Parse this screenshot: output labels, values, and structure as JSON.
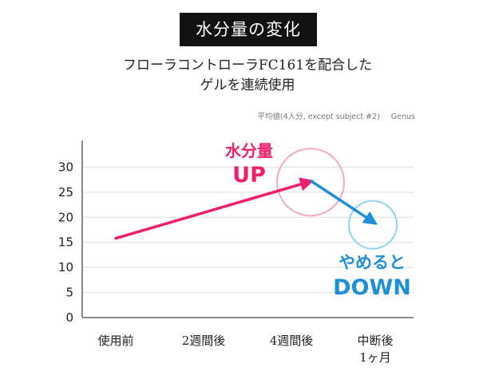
{
  "header": {
    "badge": "水分量の変化",
    "subtitle_line1": "フローラコントローラFC161を配合した",
    "subtitle_line2": "ゲルを連続使用",
    "note_main": "平均値(4人分, except subject #2)",
    "note_brand": "Genus"
  },
  "chart_data": {
    "type": "line",
    "categories": [
      "使用前",
      "2週間後",
      "4週間後",
      "中断後\n1ヶ月"
    ],
    "category_lines": [
      [
        "使用前"
      ],
      [
        "2週間後"
      ],
      [
        "4週間後"
      ],
      [
        "中断後",
        "1ヶ月"
      ]
    ],
    "yticks": [
      "0",
      "5",
      "10",
      "15",
      "20",
      "25",
      "30"
    ],
    "ylim": [
      0,
      35
    ],
    "grid": true,
    "series": [
      {
        "segments": [
          {
            "from_category": 0,
            "from_value": 15.8,
            "to_category": 2,
            "to_value": 27.2,
            "color": "#ef1f6f"
          },
          {
            "from_category": 2,
            "from_value": 27.2,
            "to_category": 3,
            "to_value": 18.8,
            "color": "#1f8fd6"
          }
        ]
      }
    ],
    "annotations": [
      {
        "lines": [
          "水分量",
          "UP"
        ],
        "color": "#ef1f6f",
        "circle_at": {
          "category": 2,
          "value": 27
        }
      },
      {
        "lines": [
          "やめると",
          "DOWN"
        ],
        "color": "#1f8fd6",
        "circle_at": {
          "category": 3,
          "value": 18.5
        }
      }
    ],
    "colors": {
      "up": "#ef1f6f",
      "down": "#1f8fd6",
      "circle_up": "#f4a9c4",
      "circle_down": "#8fd3ef"
    }
  }
}
